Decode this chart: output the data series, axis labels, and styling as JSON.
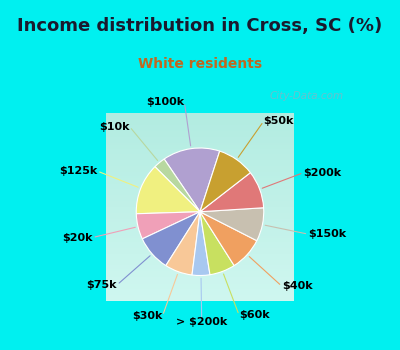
{
  "title": "Income distribution in Cross, SC (%)",
  "subtitle": "White residents",
  "bg_cyan": "#00f0f0",
  "bg_chart": "#d8f0e8",
  "labels": [
    "$100k",
    "$10k",
    "$125k",
    "$20k",
    "$75k",
    "$30k",
    "> $200k",
    "$60k",
    "$40k",
    "$150k",
    "$200k",
    "$50k"
  ],
  "values": [
    14.5,
    3.0,
    13.0,
    6.5,
    9.0,
    7.0,
    4.5,
    6.5,
    8.5,
    8.5,
    9.5,
    9.5
  ],
  "colors": [
    "#b0a0d0",
    "#b8d8a0",
    "#f0f080",
    "#f0a0b8",
    "#8090d0",
    "#f8c898",
    "#a8c8f0",
    "#c8e060",
    "#f0a060",
    "#c8c0b0",
    "#e07878",
    "#c8a030"
  ],
  "watermark": "City-Data.com",
  "title_fontsize": 13,
  "subtitle_fontsize": 10,
  "label_fontsize": 8,
  "startangle": 72
}
